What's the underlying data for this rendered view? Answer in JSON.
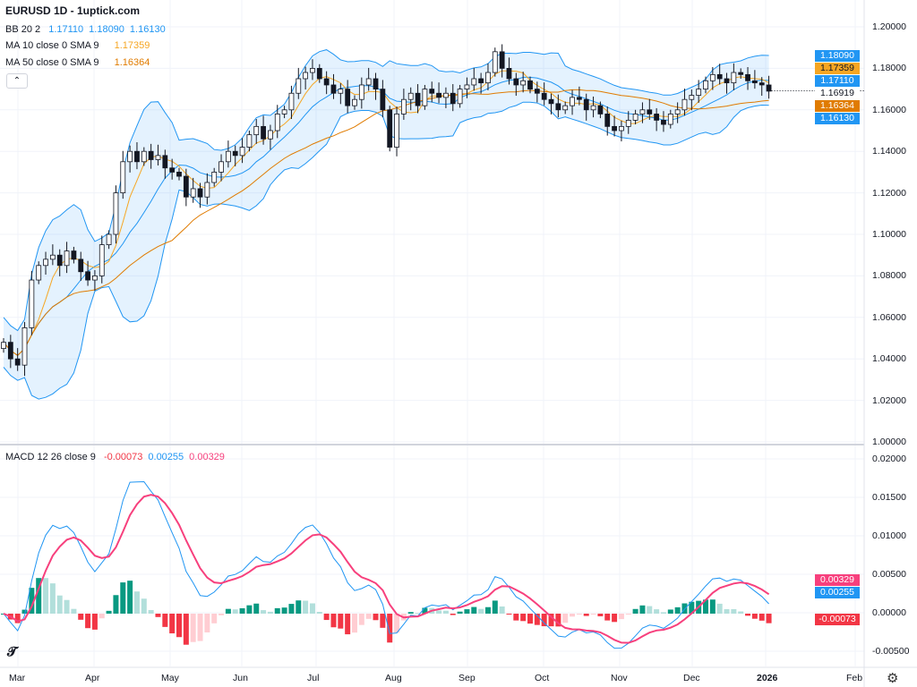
{
  "header": {
    "title": "EURUSD 1D - 1uptick.com",
    "collapse_icon": "chevron-up-icon"
  },
  "legend": {
    "bb": {
      "label": "BB 20 2",
      "values": [
        "1.17110",
        "1.18090",
        "1.16130"
      ],
      "color": "#2196f3"
    },
    "ma10": {
      "label": "MA 10 close 0 SMA 9",
      "value": "1.17359",
      "color": "#f6a623"
    },
    "ma50": {
      "label": "MA 50 close 0 SMA 9",
      "value": "1.16364",
      "color": "#e07b00"
    },
    "macd": {
      "label": "MACD 12 26 close 9",
      "values": [
        "-0.00073",
        "0.00255",
        "0.00329"
      ],
      "colors": [
        "#f23645",
        "#2196f3",
        "#f7407d"
      ]
    }
  },
  "price_axis": {
    "ticks": [
      "1.20000",
      "1.18000",
      "1.16000",
      "1.14000",
      "1.12000",
      "1.10000",
      "1.08000",
      "1.06000",
      "1.04000",
      "1.02000",
      "1.00000"
    ],
    "tags": [
      {
        "value": "1.18090",
        "color": "#2196f3"
      },
      {
        "value": "1.17359",
        "color": "#f6a623",
        "text": "#131722"
      },
      {
        "value": "1.17110",
        "color": "#2196f3"
      },
      {
        "value": "1.16919",
        "color": "#ffffff",
        "text": "#131722"
      },
      {
        "value": "1.16364",
        "color": "#e07b00"
      },
      {
        "value": "1.16130",
        "color": "#2196f3"
      }
    ]
  },
  "macd_axis": {
    "ticks": [
      "0.02000",
      "0.01500",
      "0.01000",
      "0.00500",
      "0.00000",
      "-0.00500"
    ],
    "tags": [
      {
        "value": "0.00329",
        "color": "#f7407d"
      },
      {
        "value": "0.00255",
        "color": "#2196f3"
      },
      {
        "value": "-0.00073",
        "color": "#f23645"
      }
    ]
  },
  "time_axis": {
    "labels": [
      "Mar",
      "Apr",
      "May",
      "Jun",
      "Jul",
      "Aug",
      "Sep",
      "Oct",
      "Nov",
      "Dec",
      "2026",
      "Feb"
    ]
  },
  "footer": {
    "logo": "TV",
    "settings_icon": "gear-icon"
  },
  "chart_data": {
    "type": "candlestick",
    "symbol": "EURUSD",
    "interval": "1D",
    "ylim": [
      1.0,
      1.2
    ],
    "macd_ylim": [
      -0.0075,
      0.021
    ],
    "closes": [
      1.048,
      1.04,
      1.037,
      1.055,
      1.078,
      1.085,
      1.088,
      1.09,
      1.085,
      1.092,
      1.088,
      1.082,
      1.078,
      1.08,
      1.095,
      1.1,
      1.12,
      1.135,
      1.14,
      1.135,
      1.14,
      1.136,
      1.138,
      1.132,
      1.13,
      1.128,
      1.118,
      1.122,
      1.118,
      1.125,
      1.13,
      1.135,
      1.14,
      1.138,
      1.142,
      1.148,
      1.152,
      1.146,
      1.15,
      1.158,
      1.16,
      1.168,
      1.175,
      1.178,
      1.18,
      1.175,
      1.172,
      1.168,
      1.17,
      1.162,
      1.165,
      1.172,
      1.175,
      1.17,
      1.16,
      1.142,
      1.158,
      1.165,
      1.168,
      1.162,
      1.17,
      1.168,
      1.166,
      1.168,
      1.163,
      1.17,
      1.172,
      1.175,
      1.173,
      1.178,
      1.188,
      1.18,
      1.175,
      1.172,
      1.174,
      1.17,
      1.168,
      1.165,
      1.163,
      1.16,
      1.162,
      1.166,
      1.165,
      1.16,
      1.162,
      1.158,
      1.152,
      1.15,
      1.152,
      1.155,
      1.158,
      1.16,
      1.158,
      1.155,
      1.153,
      1.158,
      1.16,
      1.165,
      1.167,
      1.17,
      1.174,
      1.177,
      1.175,
      1.173,
      1.178,
      1.177,
      1.174,
      1.173,
      1.172,
      1.169
    ]
  }
}
